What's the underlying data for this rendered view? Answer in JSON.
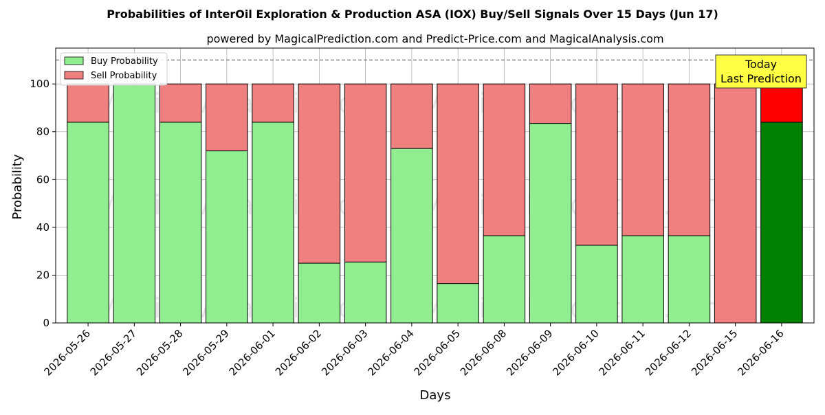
{
  "chart_data": {
    "type": "bar",
    "stacked": true,
    "title": "Probabilities of InterOil Exploration & Production ASA (IOX) Buy/Sell Signals Over 15 Days (Jun 17)",
    "subtitle": "powered by MagicalPrediction.com and Predict-Price.com and MagicalAnalysis.com",
    "xlabel": "Days",
    "ylabel": "Probability",
    "ylim": [
      0,
      115
    ],
    "yticks": [
      0,
      20,
      40,
      60,
      80,
      100
    ],
    "reference_line": 110,
    "grid": true,
    "legend_position": "top-left",
    "categories": [
      "2026-05-26",
      "2026-05-27",
      "2026-05-28",
      "2026-05-29",
      "2026-06-01",
      "2026-06-02",
      "2026-06-03",
      "2026-06-04",
      "2026-06-05",
      "2026-06-08",
      "2026-06-09",
      "2026-06-10",
      "2026-06-11",
      "2026-06-12",
      "2026-06-15",
      "2026-06-16"
    ],
    "series": [
      {
        "name": "Buy Probability",
        "color": "#90ee90",
        "highlight_color": "#008000",
        "values": [
          84,
          100,
          84,
          72,
          84,
          25,
          25.5,
          73,
          16.5,
          36.5,
          83.5,
          32.5,
          36.5,
          36.5,
          0,
          84
        ]
      },
      {
        "name": "Sell Probability",
        "color": "#f08080",
        "highlight_color": "#ff0000",
        "values": [
          16,
          0,
          16,
          28,
          16,
          75,
          74.5,
          27,
          83.5,
          63.5,
          16.5,
          67.5,
          63.5,
          63.5,
          100,
          16
        ]
      }
    ],
    "annotation": {
      "line1": "Today",
      "line2": "Last Prediction",
      "color": "#ffff44"
    },
    "watermarks": [
      "MagicalAnalysis.com",
      "MagicalPrediction.com"
    ]
  }
}
